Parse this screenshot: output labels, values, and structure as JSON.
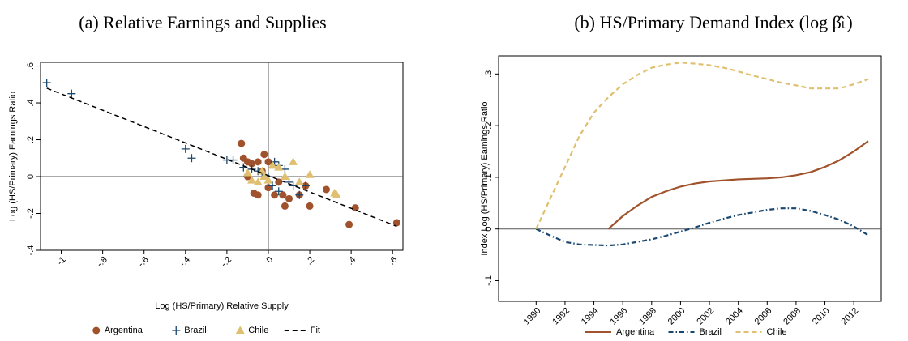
{
  "chart_data": [
    {
      "type": "scatter",
      "title": "(a) Relative Earnings and Supplies",
      "x_label": "Log (HS/Primary) Relative Supply",
      "y_label": "Log (HS/Primary) Earnings Ratio",
      "xlim": [
        -1.1,
        0.65
      ],
      "ylim": [
        -0.4,
        0.62
      ],
      "xticks": [
        -1,
        {
          "value": -0.8,
          "label": "-.8"
        },
        {
          "value": -0.6,
          "label": "-.6"
        },
        {
          "value": -0.4,
          "label": "-.4"
        },
        {
          "value": -0.2,
          "label": "-.2"
        },
        0,
        {
          "value": 0.2,
          "label": ".2"
        },
        {
          "value": 0.4,
          "label": ".4"
        },
        {
          "value": 0.6,
          "label": ".6"
        }
      ],
      "yticks": [
        {
          "value": -0.4,
          "label": "-.4"
        },
        {
          "value": -0.2,
          "label": "-.2"
        },
        0,
        {
          "value": 0.2,
          "label": ".2"
        },
        {
          "value": 0.4,
          "label": ".4"
        },
        {
          "value": 0.6,
          "label": ".6"
        }
      ],
      "hline": 0,
      "vline": 0,
      "legend": "bottom",
      "series": [
        {
          "name": "Argentina",
          "color": "#a0522d",
          "marker": "circle",
          "x": [
            -0.13,
            -0.12,
            -0.1,
            -0.08,
            -0.05,
            -0.02,
            0,
            -0.1,
            -0.07,
            -0.05,
            0,
            0.03,
            0.07,
            0.1,
            0.08,
            0.15,
            0.2,
            0.18,
            0.28,
            0.39,
            0.42,
            0.62,
            0.05,
            -0.03
          ],
          "values": [
            0.18,
            0.1,
            0.08,
            0.07,
            0.08,
            0.12,
            0.08,
            0,
            -0.09,
            -0.1,
            -0.06,
            -0.1,
            -0.1,
            -0.12,
            -0.16,
            -0.1,
            -0.16,
            -0.05,
            -0.07,
            -0.26,
            -0.17,
            -0.25,
            -0.03,
            0.03
          ]
        },
        {
          "name": "Brazil",
          "color": "#1a476f",
          "marker": "plus",
          "x": [
            -1.07,
            -0.95,
            -0.4,
            -0.37,
            -0.2,
            -0.17,
            -0.12,
            -0.08,
            -0.03,
            0,
            0.03,
            0.05,
            0.08,
            0.1,
            0.12,
            0.15,
            0.18,
            0.05,
            0.02,
            -0.05
          ],
          "values": [
            0.51,
            0.45,
            0.15,
            0.1,
            0.09,
            0.09,
            0.05,
            0.04,
            0.02,
            0,
            0.08,
            0.06,
            0.04,
            -0.03,
            -0.05,
            -0.1,
            -0.05,
            -0.08,
            -0.05,
            0.03
          ]
        },
        {
          "name": "Chile",
          "color": "#e0c070",
          "marker": "triangle",
          "x": [
            -0.1,
            -0.08,
            -0.05,
            -0.02,
            0.02,
            0.05,
            0.08,
            0.12,
            0.2,
            0.32,
            0.33,
            0.15,
            -0.03,
            0
          ],
          "values": [
            0.02,
            -0.02,
            -0.03,
            0,
            0.06,
            0.05,
            0,
            0.08,
            0.01,
            -0.09,
            -0.1,
            -0.03,
            0.03,
            -0.02
          ]
        },
        {
          "name": "Fit",
          "color": "#000000",
          "marker": "none",
          "dash": "dashed",
          "x": [
            -1.07,
            0.62
          ],
          "values": [
            0.48,
            -0.27
          ]
        }
      ]
    },
    {
      "type": "line",
      "title": "(b) HS/Primary Demand Index (log β̂ₜ)",
      "y_label": "Index Log (HS/Primary) Earnings Ratio",
      "x": [
        1990,
        1991,
        1992,
        1993,
        1994,
        1995,
        1996,
        1997,
        1998,
        1999,
        2000,
        2001,
        2002,
        2003,
        2004,
        2005,
        2006,
        2007,
        2008,
        2009,
        2010,
        2011,
        2012,
        2013
      ],
      "xlim": [
        1987.4,
        2013.9
      ],
      "ylim": [
        -0.14,
        0.335
      ],
      "xticks": [
        1990,
        1992,
        1994,
        1996,
        1998,
        2000,
        2002,
        2004,
        2006,
        2008,
        2010,
        2012
      ],
      "yticks": [
        {
          "value": -0.1,
          "label": "-.1"
        },
        0,
        {
          "value": 0.1,
          "label": ".1"
        },
        {
          "value": 0.2,
          "label": ".2"
        },
        {
          "value": 0.3,
          "label": ".3"
        }
      ],
      "hline": 0,
      "legend": "bottom",
      "series": [
        {
          "name": "Argentina",
          "color": "#a0522d",
          "dash": "solid",
          "values": [
            null,
            null,
            null,
            null,
            null,
            0,
            0.025,
            0.045,
            0.062,
            0.073,
            0.082,
            0.088,
            0.092,
            0.094,
            0.096,
            0.097,
            0.098,
            0.1,
            0.104,
            0.11,
            0.12,
            0.133,
            0.15,
            0.17
          ]
        },
        {
          "name": "Brazil",
          "color": "#1a476f",
          "dash": "dashdot",
          "values": [
            0,
            -0.013,
            -0.025,
            -0.03,
            -0.031,
            -0.032,
            -0.03,
            -0.025,
            -0.02,
            -0.013,
            -0.005,
            0.003,
            0.012,
            0.02,
            0.027,
            0.032,
            0.037,
            0.04,
            0.04,
            0.035,
            0.027,
            0.018,
            0.005,
            -0.012
          ]
        },
        {
          "name": "Chile",
          "color": "#e0c070",
          "dash": "dashed",
          "values": [
            0,
            0.06,
            0.12,
            0.18,
            0.225,
            0.255,
            0.28,
            0.298,
            0.312,
            0.318,
            0.322,
            0.32,
            0.317,
            0.312,
            0.305,
            0.297,
            0.29,
            0.283,
            0.278,
            0.272,
            0.272,
            0.272,
            0.28,
            0.29
          ]
        }
      ]
    }
  ]
}
